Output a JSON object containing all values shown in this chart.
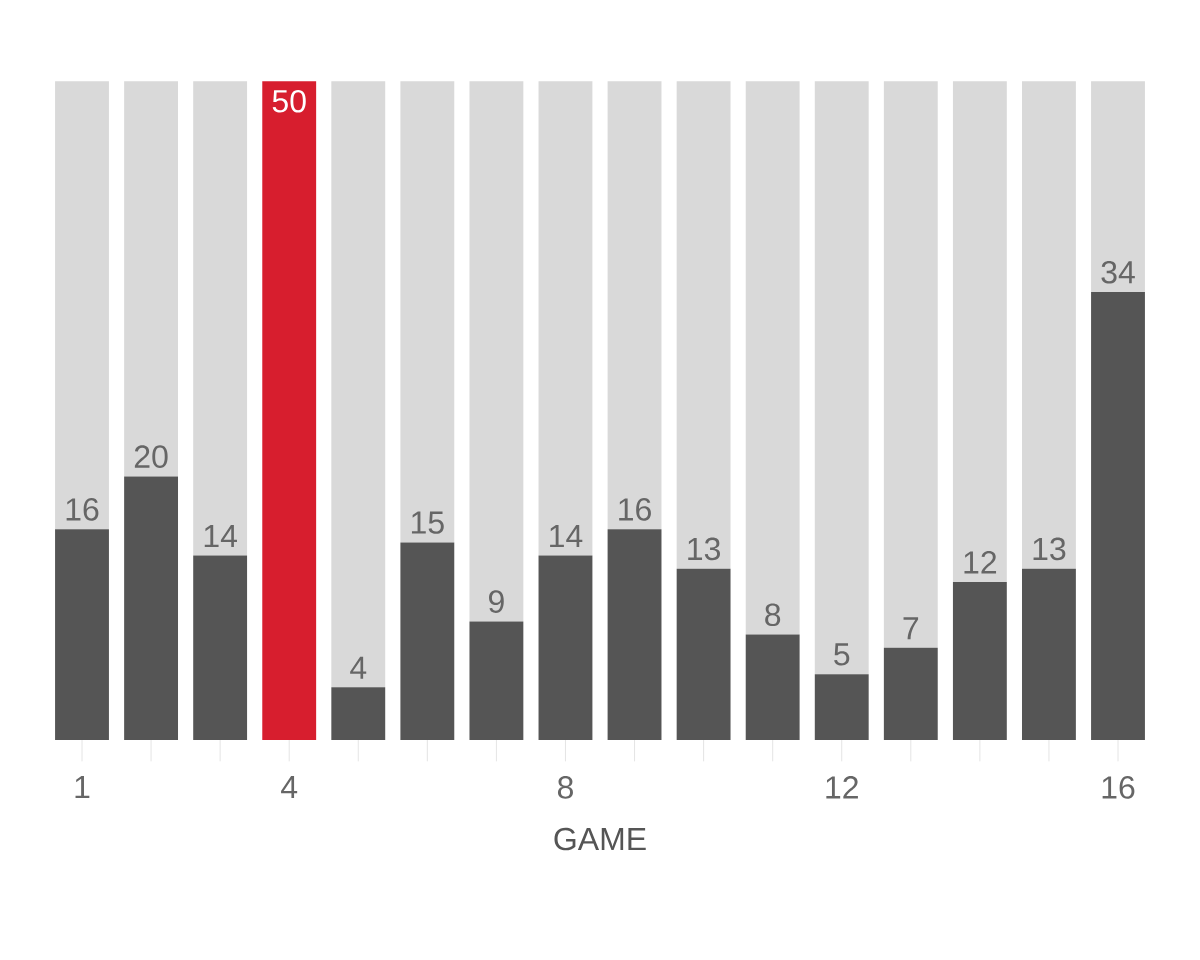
{
  "chart_data": {
    "type": "bar",
    "stacked": true,
    "xlabel": "GAME",
    "x": [
      1,
      2,
      3,
      4,
      5,
      6,
      7,
      8,
      9,
      10,
      11,
      12,
      13,
      14,
      15,
      16
    ],
    "xlim": [
      1,
      16
    ],
    "xticks": [
      1,
      {
        "value": 2,
        "label": null
      },
      {
        "value": 3,
        "label": null
      },
      4,
      {
        "value": 5,
        "label": null
      },
      {
        "value": 6,
        "label": null
      },
      {
        "value": 7,
        "label": null
      },
      8,
      {
        "value": 9,
        "label": null
      },
      {
        "value": 10,
        "label": null
      },
      {
        "value": 11,
        "label": null
      },
      12,
      {
        "value": 13,
        "label": null
      },
      {
        "value": 14,
        "label": null
      },
      {
        "value": 15,
        "label": null
      },
      16
    ],
    "series": [
      {
        "colors": [
          "#555555",
          "#555555",
          "#555555",
          "#d71e2e",
          "#555555",
          "#555555",
          "#555555",
          "#555555",
          "#555555",
          "#555555",
          "#555555",
          "#555555",
          "#555555",
          "#555555",
          "#555555",
          "#555555"
        ],
        "values": [
          16,
          20,
          14,
          50,
          4,
          15,
          9,
          14,
          16,
          13,
          8,
          5,
          7,
          12,
          13,
          34
        ],
        "value_labels": [
          "16",
          "20",
          "14",
          "50",
          "4",
          "15",
          "9",
          "14",
          "16",
          "13",
          "8",
          "5",
          "7",
          "12",
          "13",
          "34"
        ]
      },
      {
        "color": "#d9d9d9",
        "values": [
          34,
          30,
          36,
          0,
          46,
          35,
          41,
          36,
          34,
          37,
          42,
          45,
          43,
          38,
          37,
          16
        ]
      }
    ]
  }
}
